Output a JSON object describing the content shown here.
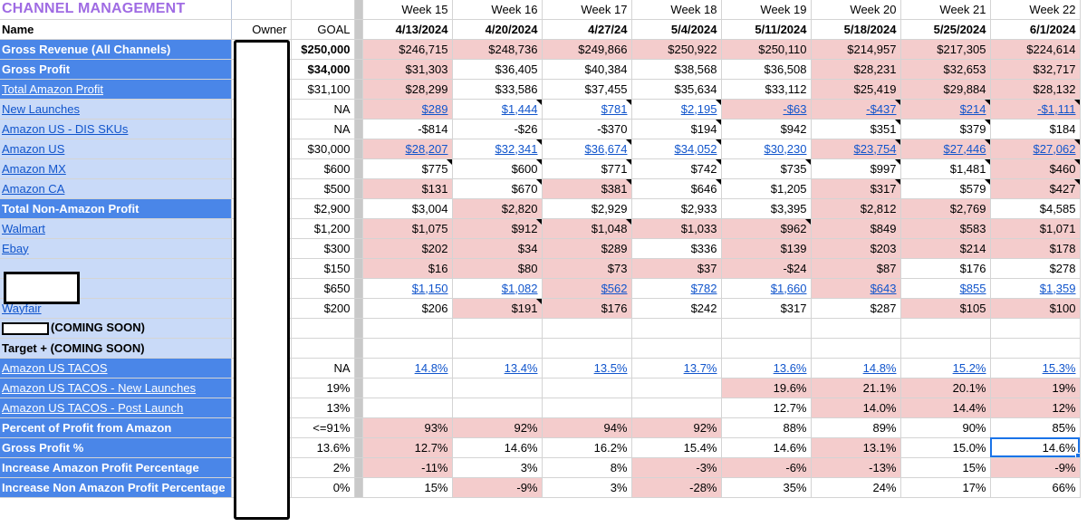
{
  "sheet": {
    "title": "CHANNEL MANAGEMENT",
    "col_name": "Name",
    "col_owner": "Owner",
    "col_goal": "GOAL",
    "weeks": [
      "Week 15",
      "Week 16",
      "Week 17",
      "Week 18",
      "Week 19",
      "Week 20",
      "Week 21",
      "Week 22"
    ],
    "dates": [
      "4/13/2024",
      "4/20/2024",
      "4/27/24",
      "5/4/2024",
      "5/11/2024",
      "5/18/2024",
      "5/25/2024",
      "6/1/2024"
    ]
  },
  "rows": [
    {
      "name": "Gross Revenue (All Channels)",
      "style": "dark",
      "link": false,
      "goal": "$250,000",
      "goal_bold": true,
      "values": [
        "$246,715",
        "$248,736",
        "$249,866",
        "$250,922",
        "$250,110",
        "$214,957",
        "$217,305",
        "$224,614"
      ],
      "pink": [
        1,
        1,
        1,
        1,
        1,
        1,
        1,
        1
      ],
      "link_vals": false,
      "tri": [
        0,
        0,
        0,
        0,
        0,
        0,
        0,
        0
      ]
    },
    {
      "name": "Gross Profit",
      "style": "dark",
      "link": false,
      "goal": "$34,000",
      "goal_bold": true,
      "values": [
        "$31,303",
        "$36,405",
        "$40,384",
        "$38,568",
        "$36,508",
        "$28,231",
        "$32,653",
        "$32,717"
      ],
      "pink": [
        1,
        0,
        0,
        0,
        0,
        1,
        1,
        1
      ],
      "link_vals": false,
      "tri": [
        0,
        0,
        0,
        0,
        0,
        0,
        0,
        0
      ]
    },
    {
      "name": "Total Amazon Profit",
      "style": "dark",
      "link": true,
      "goal": "$31,100",
      "goal_bold": false,
      "values": [
        "$28,299",
        "$33,586",
        "$37,455",
        "$35,634",
        "$33,112",
        "$25,419",
        "$29,884",
        "$28,132"
      ],
      "pink": [
        1,
        0,
        0,
        0,
        0,
        1,
        1,
        1
      ],
      "link_vals": false,
      "tri": [
        0,
        0,
        0,
        0,
        0,
        0,
        0,
        0
      ]
    },
    {
      "name": "New Launches",
      "style": "light",
      "link": true,
      "goal": "NA",
      "goal_bold": false,
      "values": [
        "$289",
        "$1,444",
        "$781",
        "$2,195",
        "-$63",
        "-$437",
        "$214",
        "-$1,111"
      ],
      "pink": [
        1,
        0,
        0,
        0,
        1,
        1,
        1,
        1
      ],
      "link_vals": true,
      "tri": [
        0,
        1,
        1,
        1,
        0,
        1,
        1,
        1
      ]
    },
    {
      "name": "Amazon US - DIS SKUs",
      "style": "light",
      "link": true,
      "goal": "NA",
      "goal_bold": false,
      "values": [
        "-$814",
        "-$26",
        "-$370",
        "$194",
        "$942",
        "$351",
        "$379",
        "$184"
      ],
      "pink": [
        0,
        0,
        0,
        0,
        0,
        0,
        0,
        0
      ],
      "link_vals": false,
      "tri": [
        0,
        0,
        0,
        1,
        0,
        1,
        1,
        0
      ]
    },
    {
      "name": "Amazon US",
      "style": "light",
      "link": true,
      "goal": "$30,000",
      "goal_bold": false,
      "values": [
        "$28,207",
        "$32,341",
        "$36,674",
        "$34,052",
        "$30,230",
        "$23,754",
        "$27,446",
        "$27,062"
      ],
      "pink": [
        1,
        0,
        0,
        0,
        0,
        1,
        1,
        1
      ],
      "link_vals": true,
      "tri": [
        0,
        1,
        1,
        1,
        0,
        1,
        1,
        1
      ]
    },
    {
      "name": "Amazon MX",
      "style": "light",
      "link": true,
      "goal": "$600",
      "goal_bold": false,
      "values": [
        "$775",
        "$600",
        "$771",
        "$742",
        "$735",
        "$997",
        "$1,481",
        "$460"
      ],
      "pink": [
        0,
        0,
        0,
        0,
        0,
        0,
        0,
        1
      ],
      "link_vals": false,
      "tri": [
        1,
        1,
        1,
        1,
        1,
        1,
        1,
        1
      ]
    },
    {
      "name": "Amazon CA",
      "style": "light",
      "link": true,
      "goal": "$500",
      "goal_bold": false,
      "values": [
        "$131",
        "$670",
        "$381",
        "$646",
        "$1,205",
        "$317",
        "$579",
        "$427"
      ],
      "pink": [
        1,
        0,
        1,
        0,
        0,
        1,
        0,
        1
      ],
      "link_vals": false,
      "tri": [
        0,
        1,
        1,
        1,
        0,
        1,
        1,
        1
      ]
    },
    {
      "name": "Total Non-Amazon Profit",
      "style": "dark",
      "link": false,
      "goal": "$2,900",
      "goal_bold": false,
      "values": [
        "$3,004",
        "$2,820",
        "$2,929",
        "$2,933",
        "$3,395",
        "$2,812",
        "$2,769",
        "$4,585"
      ],
      "pink": [
        0,
        1,
        0,
        0,
        0,
        1,
        1,
        0
      ],
      "link_vals": false,
      "tri": [
        0,
        0,
        0,
        0,
        0,
        0,
        0,
        0
      ]
    },
    {
      "name": "Walmart",
      "style": "light",
      "link": true,
      "goal": "$1,200",
      "goal_bold": false,
      "values": [
        "$1,075",
        "$912",
        "$1,048",
        "$1,033",
        "$962",
        "$849",
        "$583",
        "$1,071"
      ],
      "pink": [
        1,
        1,
        1,
        1,
        1,
        1,
        1,
        1
      ],
      "link_vals": false,
      "tri": [
        0,
        1,
        1,
        0,
        1,
        0,
        0,
        0
      ]
    },
    {
      "name": "Ebay",
      "style": "light",
      "link": true,
      "goal": "$300",
      "goal_bold": false,
      "values": [
        "$202",
        "$34",
        "$289",
        "$336",
        "$139",
        "$203",
        "$214",
        "$178"
      ],
      "pink": [
        1,
        1,
        1,
        0,
        1,
        1,
        1,
        1
      ],
      "link_vals": false,
      "tri": [
        0,
        0,
        0,
        0,
        0,
        0,
        0,
        0
      ]
    },
    {
      "name": "",
      "style": "light",
      "link": false,
      "goal": "$150",
      "goal_bold": false,
      "redacted": "big",
      "values": [
        "$16",
        "$80",
        "$73",
        "$37",
        "-$24",
        "$87",
        "$176",
        "$278"
      ],
      "pink": [
        1,
        1,
        1,
        1,
        1,
        1,
        0,
        0
      ],
      "link_vals": false,
      "tri": [
        0,
        0,
        0,
        0,
        0,
        0,
        0,
        0
      ]
    },
    {
      "name": "",
      "style": "light",
      "link": false,
      "goal": "$650",
      "goal_bold": false,
      "redacted": "none",
      "values": [
        "$1,150",
        "$1,082",
        "$562",
        "$782",
        "$1,660",
        "$643",
        "$855",
        "$1,359"
      ],
      "pink": [
        0,
        0,
        1,
        0,
        0,
        1,
        0,
        0
      ],
      "link_vals": true,
      "tri": [
        0,
        0,
        0,
        0,
        0,
        0,
        0,
        0
      ]
    },
    {
      "name": "Wayfair",
      "style": "light",
      "link": true,
      "goal": "$200",
      "goal_bold": false,
      "values": [
        "$206",
        "$191",
        "$176",
        "$242",
        "$317",
        "$287",
        "$105",
        "$100"
      ],
      "pink": [
        0,
        1,
        1,
        0,
        0,
        0,
        1,
        1
      ],
      "link_vals": false,
      "tri": [
        0,
        1,
        0,
        0,
        0,
        0,
        0,
        0
      ]
    },
    {
      "name": "(COMING SOON)",
      "style": "light",
      "link": false,
      "goal": "",
      "goal_bold": false,
      "redacted": "small",
      "values": [
        "",
        "",
        "",
        "",
        "",
        "",
        "",
        ""
      ],
      "pink": [
        0,
        0,
        0,
        0,
        0,
        0,
        0,
        0
      ],
      "link_vals": false,
      "tri": [
        0,
        0,
        0,
        0,
        0,
        0,
        0,
        0
      ]
    },
    {
      "name": "Target + (COMING SOON)",
      "style": "light",
      "link": false,
      "goal": "",
      "goal_bold": false,
      "values": [
        "",
        "",
        "",
        "",
        "",
        "",
        "",
        ""
      ],
      "pink": [
        0,
        0,
        0,
        0,
        0,
        0,
        0,
        0
      ],
      "link_vals": false,
      "tri": [
        0,
        0,
        0,
        0,
        0,
        0,
        0,
        0
      ]
    },
    {
      "name": "Amazon US TACOS",
      "style": "dark",
      "link": true,
      "goal": "NA",
      "goal_bold": false,
      "values": [
        "14.8%",
        "13.4%",
        "13.5%",
        "13.7%",
        "13.6%",
        "14.8%",
        "15.2%",
        "15.3%"
      ],
      "pink": [
        0,
        0,
        0,
        0,
        0,
        0,
        0,
        0
      ],
      "link_vals": true,
      "tri": [
        0,
        0,
        0,
        0,
        0,
        0,
        0,
        0
      ]
    },
    {
      "name": "Amazon US TACOS - New Launches",
      "style": "dark",
      "link": true,
      "goal": "19%",
      "goal_bold": false,
      "values": [
        "",
        "",
        "",
        "",
        "19.6%",
        "21.1%",
        "20.1%",
        "19%"
      ],
      "pink": [
        0,
        0,
        0,
        0,
        1,
        1,
        1,
        1
      ],
      "link_vals": false,
      "tri": [
        0,
        0,
        0,
        0,
        0,
        0,
        0,
        0
      ]
    },
    {
      "name": "Amazon US TACOS - Post Launch",
      "style": "dark",
      "link": true,
      "goal": "13%",
      "goal_bold": false,
      "values": [
        "",
        "",
        "",
        "",
        "12.7%",
        "14.0%",
        "14.4%",
        "12%"
      ],
      "pink": [
        0,
        0,
        0,
        0,
        0,
        1,
        1,
        1
      ],
      "link_vals": false,
      "tri": [
        0,
        0,
        0,
        0,
        0,
        0,
        0,
        0
      ]
    },
    {
      "name": "Percent of Profit from Amazon",
      "style": "dark",
      "link": false,
      "goal": "<=91%",
      "goal_bold": false,
      "values": [
        "93%",
        "92%",
        "94%",
        "92%",
        "88%",
        "89%",
        "90%",
        "85%"
      ],
      "pink": [
        1,
        1,
        1,
        1,
        0,
        0,
        0,
        0
      ],
      "link_vals": false,
      "tri": [
        0,
        0,
        0,
        0,
        0,
        0,
        0,
        0
      ]
    },
    {
      "name": "Gross Profit %",
      "style": "dark",
      "link": false,
      "goal": "13.6%",
      "goal_bold": false,
      "values": [
        "12.7%",
        "14.6%",
        "16.2%",
        "15.4%",
        "14.6%",
        "13.1%",
        "15.0%",
        "14.6%"
      ],
      "pink": [
        1,
        0,
        0,
        0,
        0,
        1,
        0,
        0
      ],
      "link_vals": false,
      "tri": [
        0,
        0,
        0,
        0,
        0,
        0,
        0,
        0
      ]
    },
    {
      "name": "Increase Amazon Profit Percentage",
      "style": "dark",
      "link": false,
      "goal": "2%",
      "goal_bold": false,
      "values": [
        "-11%",
        "3%",
        "8%",
        "-3%",
        "-6%",
        "-13%",
        "15%",
        "-9%"
      ],
      "pink": [
        1,
        0,
        0,
        1,
        1,
        1,
        0,
        1
      ],
      "link_vals": false,
      "tri": [
        0,
        0,
        0,
        0,
        0,
        0,
        0,
        0
      ]
    },
    {
      "name": "Increase Non Amazon Profit Percentage",
      "style": "dark",
      "link": false,
      "goal": "0%",
      "goal_bold": false,
      "values": [
        "15%",
        "-9%",
        "3%",
        "-28%",
        "35%",
        "24%",
        "17%",
        "66%"
      ],
      "pink": [
        0,
        1,
        0,
        1,
        0,
        0,
        0,
        0
      ],
      "link_vals": false,
      "tri": [
        0,
        0,
        0,
        0,
        0,
        0,
        0,
        0
      ]
    }
  ],
  "colors": {
    "dark_blue": "#4a86e8",
    "light_blue": "#c9daf8",
    "pink": "#f4cccc",
    "title_purple": "#9f6be3",
    "link": "#1155cc"
  }
}
